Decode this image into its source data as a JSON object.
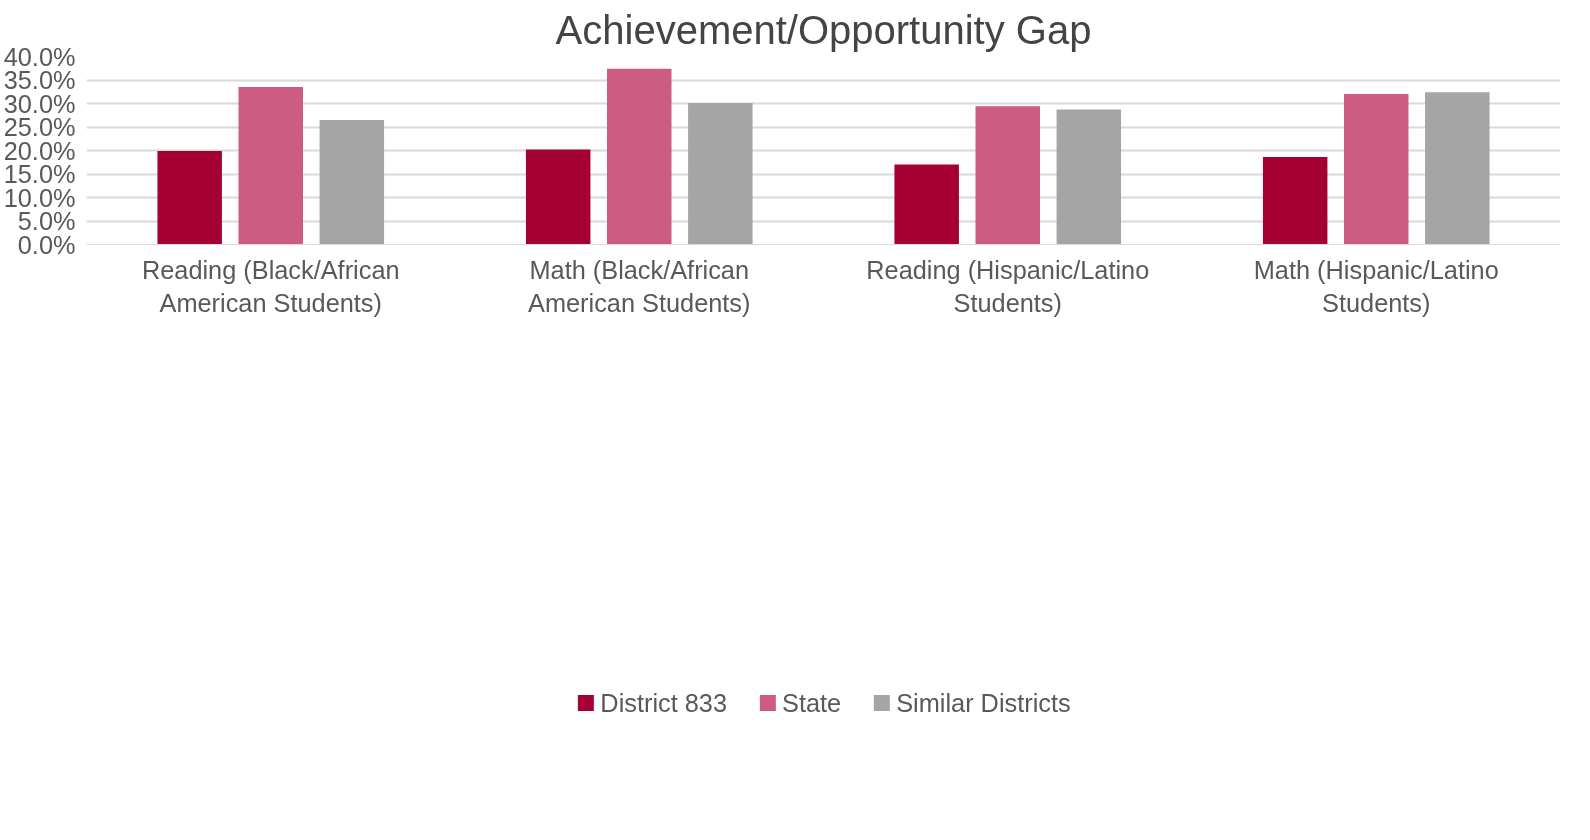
{
  "chart_data": {
    "type": "bar",
    "title": "Achievement/Opportunity Gap",
    "categories": [
      "Reading (Black/African American Students)",
      "Math (Black/African American Students)",
      "Reading (Hispanic/Latino Students)",
      "Math (Hispanic/Latino Students)"
    ],
    "series": [
      {
        "name": "District 833",
        "color": "#a50034",
        "values": [
          19.9,
          20.2,
          17.0,
          18.6
        ]
      },
      {
        "name": "State",
        "color": "#cc5c82",
        "values": [
          33.5,
          37.4,
          29.4,
          32.0
        ]
      },
      {
        "name": "Similar Districts",
        "color": "#a5a5a5",
        "values": [
          26.5,
          30.1,
          28.7,
          32.4
        ]
      }
    ],
    "ylim": [
      0,
      40
    ],
    "yticks": [
      {
        "value": 0,
        "label": "0.0%"
      },
      {
        "value": 5,
        "label": "5.0%"
      },
      {
        "value": 10,
        "label": "10.0%"
      },
      {
        "value": 15,
        "label": "15.0%"
      },
      {
        "value": 20,
        "label": "20.0%"
      },
      {
        "value": 25,
        "label": "25.0%"
      },
      {
        "value": 30,
        "label": "30.0%"
      },
      {
        "value": 35,
        "label": "35.0%"
      },
      {
        "value": 40,
        "label": "40.0%"
      }
    ],
    "grid": "y",
    "legend": "bottom"
  }
}
